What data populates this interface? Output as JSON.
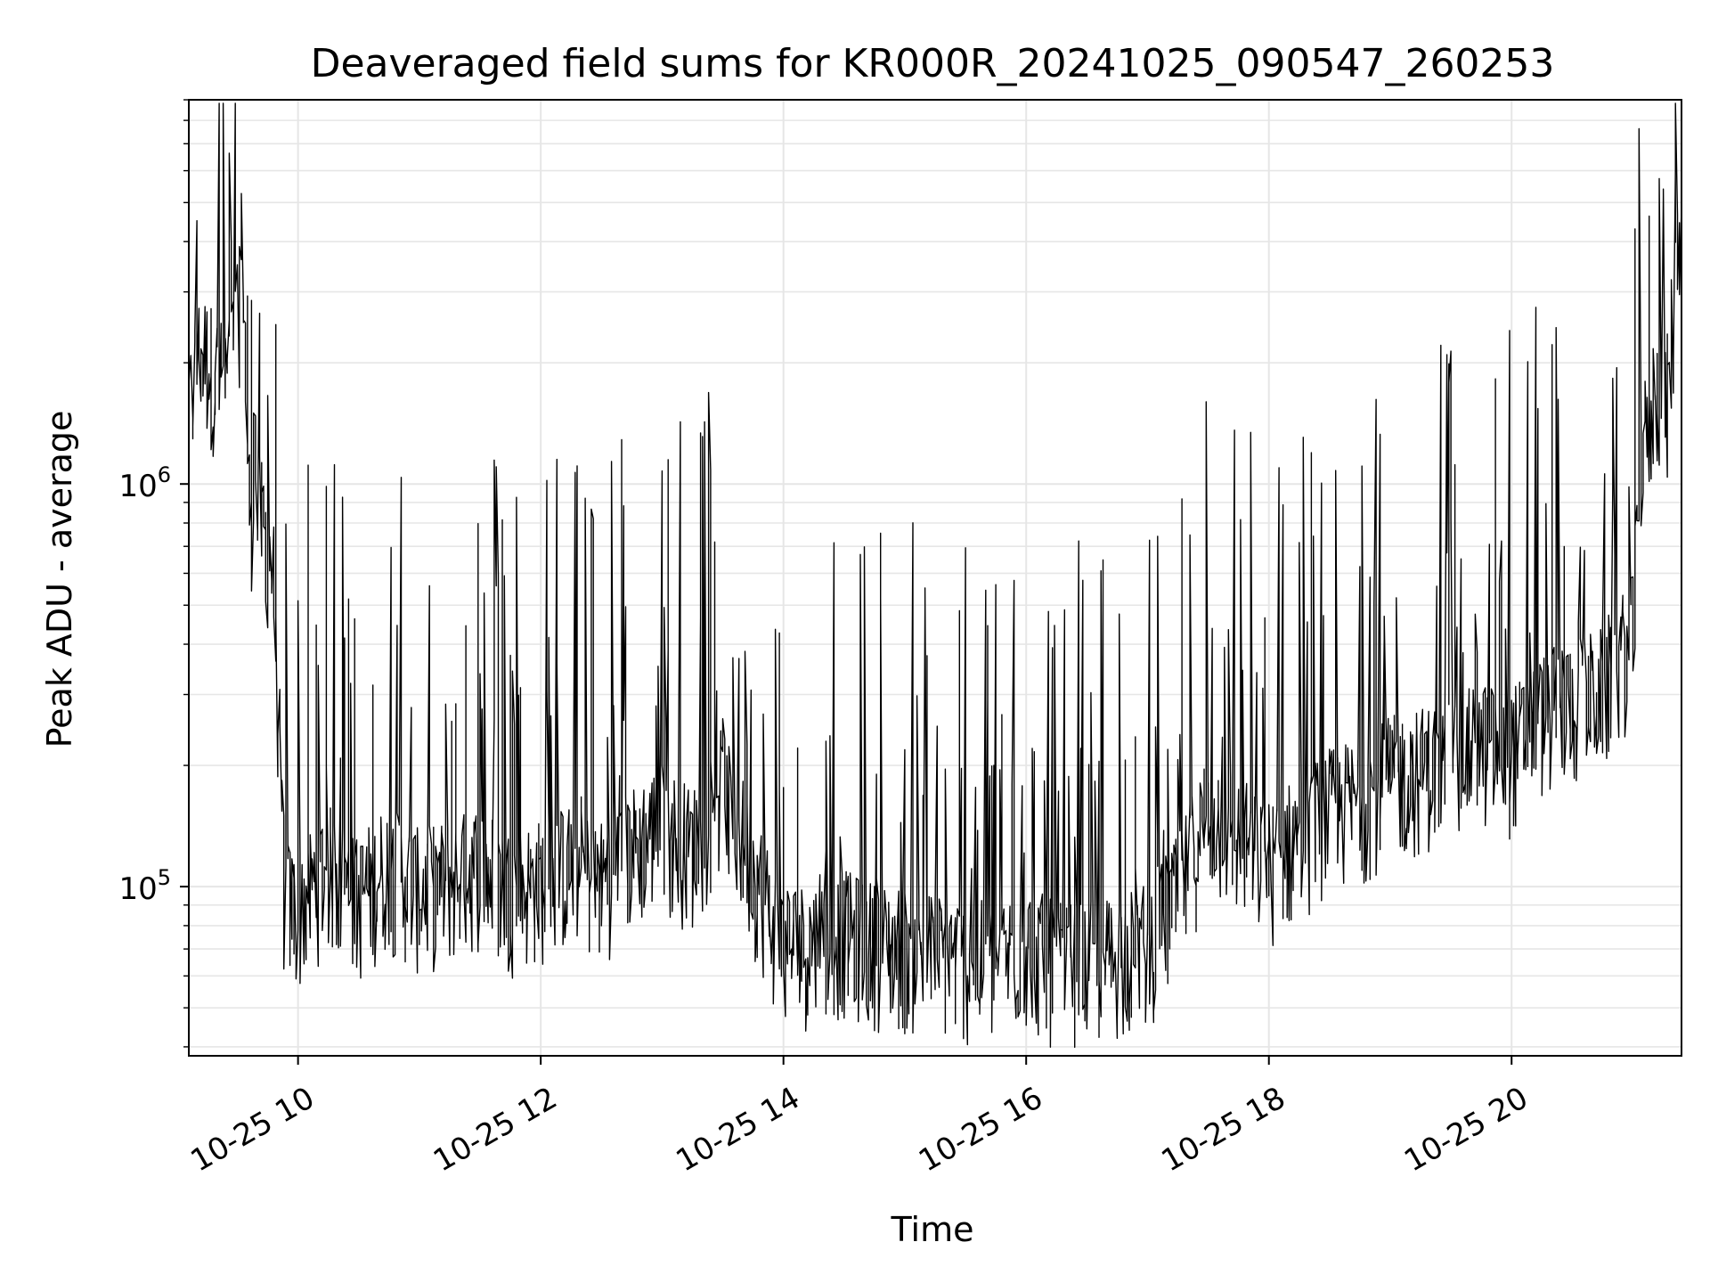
{
  "chart_data": {
    "type": "line",
    "title": "Deaveraged field sums for KR000R_20241025_090547_260253",
    "xlabel": "Time",
    "ylabel": "Peak ADU - average",
    "yscale": "log",
    "ylim": [
      38000,
      9000000
    ],
    "xlim": [
      "2024-10-25 09:06",
      "2024-10-25 21:24"
    ],
    "grid": true,
    "line_color": "#000000",
    "grid_color": "#e6e6e6",
    "x_ticks": [
      {
        "value": "2024-10-25 10:00",
        "label": "10-25 10"
      },
      {
        "value": "2024-10-25 12:00",
        "label": "10-25 12"
      },
      {
        "value": "2024-10-25 14:00",
        "label": "10-25 14"
      },
      {
        "value": "2024-10-25 16:00",
        "label": "10-25 16"
      },
      {
        "value": "2024-10-25 18:00",
        "label": "10-25 18"
      },
      {
        "value": "2024-10-25 20:00",
        "label": "10-25 20"
      }
    ],
    "y_ticks": [
      {
        "value": 100000,
        "base": "10",
        "exp": "5"
      },
      {
        "value": 1000000,
        "base": "10",
        "exp": "6"
      }
    ],
    "series": [
      {
        "x": [
          "2024-10-25 09:06",
          "2024-10-25 09:12",
          "2024-10-25 09:18",
          "2024-10-25 09:24",
          "2024-10-25 09:30",
          "2024-10-25 09:33",
          "2024-10-25 09:36",
          "2024-10-25 09:42",
          "2024-10-25 09:48",
          "2024-10-25 09:54",
          "2024-10-25 10:00",
          "2024-10-25 10:15",
          "2024-10-25 10:30",
          "2024-10-25 10:45",
          "2024-10-25 11:00",
          "2024-10-25 11:15",
          "2024-10-25 11:30",
          "2024-10-25 11:45",
          "2024-10-25 12:00",
          "2024-10-25 12:15",
          "2024-10-25 12:30",
          "2024-10-25 12:45",
          "2024-10-25 13:00",
          "2024-10-25 13:15",
          "2024-10-25 13:30",
          "2024-10-25 13:45",
          "2024-10-25 14:00",
          "2024-10-25 14:15",
          "2024-10-25 14:30",
          "2024-10-25 14:45",
          "2024-10-25 15:00",
          "2024-10-25 15:15",
          "2024-10-25 15:30",
          "2024-10-25 15:45",
          "2024-10-25 16:00",
          "2024-10-25 16:15",
          "2024-10-25 16:30",
          "2024-10-25 16:45",
          "2024-10-25 17:00",
          "2024-10-25 17:15",
          "2024-10-25 17:30",
          "2024-10-25 17:45",
          "2024-10-25 18:00",
          "2024-10-25 18:15",
          "2024-10-25 18:30",
          "2024-10-25 18:45",
          "2024-10-25 19:00",
          "2024-10-25 19:15",
          "2024-10-25 19:30",
          "2024-10-25 19:45",
          "2024-10-25 20:00",
          "2024-10-25 20:15",
          "2024-10-25 20:30",
          "2024-10-25 20:45",
          "2024-10-25 21:00",
          "2024-10-25 21:06",
          "2024-10-25 21:12",
          "2024-10-25 21:18",
          "2024-10-25 21:24"
        ],
        "y": [
          1400000,
          2100000,
          1900000,
          1700000,
          2300000,
          4000000,
          900000,
          800000,
          600000,
          90000,
          85000,
          110000,
          90000,
          110000,
          95000,
          100000,
          110000,
          95000,
          100000,
          110000,
          100000,
          120000,
          140000,
          120000,
          170000,
          110000,
          70000,
          70000,
          75000,
          70000,
          68000,
          66000,
          64000,
          62000,
          70000,
          62000,
          62000,
          65000,
          70000,
          90000,
          150000,
          130000,
          110000,
          130000,
          150000,
          160000,
          180000,
          190000,
          200000,
          220000,
          210000,
          260000,
          280000,
          300000,
          400000,
          1200000,
          1700000,
          1600000,
          4800000
        ]
      }
    ]
  }
}
